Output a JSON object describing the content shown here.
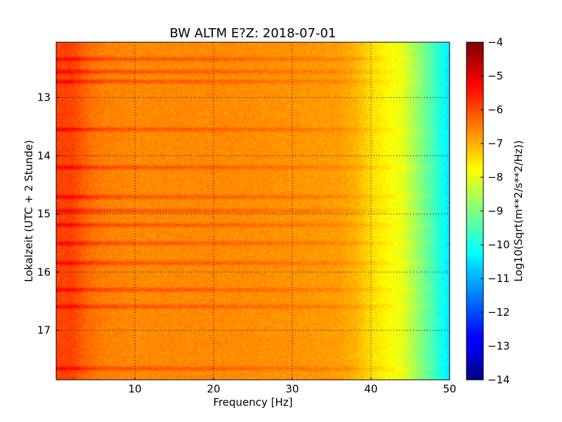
{
  "chart_data": {
    "type": "heatmap",
    "title": "BW ALTM E?Z: 2018-07-01",
    "xlabel": "Frequency [Hz]",
    "ylabel": "Lokalzeit (UTC + 2 Stunde)",
    "xlim": [
      0,
      50
    ],
    "ylim": [
      12.05,
      17.85
    ],
    "y_inverted": true,
    "x_ticks": [
      10,
      20,
      30,
      40,
      50
    ],
    "x_tick_labels": [
      "10",
      "20",
      "30",
      "40",
      "50"
    ],
    "y_ticks": [
      13,
      14,
      15,
      16,
      17
    ],
    "y_tick_labels": [
      "13",
      "14",
      "15",
      "16",
      "17"
    ],
    "grid": true,
    "colormap": "jet",
    "colorbar": {
      "label": "Log10(Sqrt(m**2/s**2/Hz))",
      "min": -14,
      "max": -4,
      "ticks": [
        -4,
        -5,
        -6,
        -7,
        -8,
        -9,
        -10,
        -11,
        -12,
        -13,
        -14
      ],
      "tick_labels": [
        "−4",
        "−5",
        "−6",
        "−7",
        "−8",
        "−9",
        "−10",
        "−11",
        "−12",
        "−13",
        "−14"
      ]
    },
    "mean_spectrum": {
      "frequency_hz": [
        0,
        2,
        4,
        6,
        10,
        20,
        30,
        36,
        38,
        40,
        42,
        44,
        46,
        48,
        50
      ],
      "log10_value": [
        -5.9,
        -5.9,
        -6.3,
        -6.5,
        -6.6,
        -6.6,
        -6.7,
        -6.8,
        -7.0,
        -7.4,
        -7.7,
        -8.0,
        -8.8,
        -9.6,
        -10.5
      ]
    },
    "high_energy_times": [
      12.35,
      12.55,
      12.72,
      13.55,
      14.2,
      14.7,
      14.95,
      15.2,
      15.5,
      15.85,
      16.3,
      16.6,
      17.65
    ]
  }
}
